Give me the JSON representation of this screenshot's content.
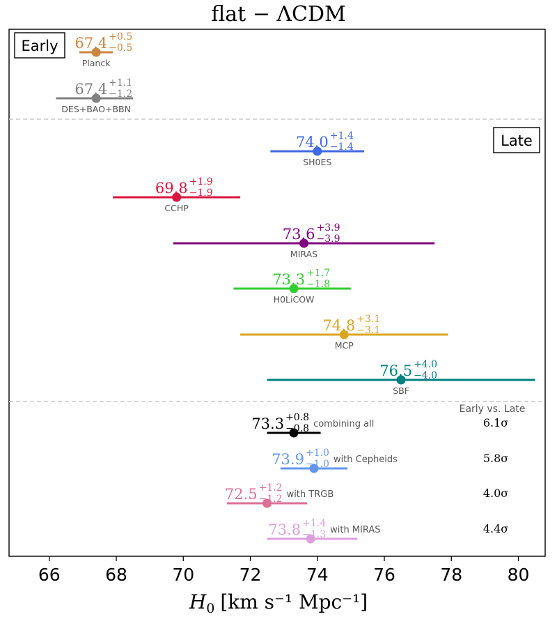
{
  "chart_data": {
    "type": "scatter",
    "title": "flat − ΛCDM",
    "xlabel_main": "H",
    "xlabel_sub": "0",
    "xlabel_units": "[km s⁻¹ Mpc⁻¹]",
    "xlim": [
      64.8,
      80.8
    ],
    "xticks": [
      "66",
      "68",
      "70",
      "72",
      "74",
      "76",
      "78",
      "80"
    ],
    "grid": false,
    "sections": [
      {
        "label": "Early",
        "box": "top-left"
      },
      {
        "label": "Late",
        "box": "top-right"
      }
    ],
    "comparison_header": "Early vs. Late",
    "series": [
      {
        "name": "Planck",
        "value": 67.4,
        "plus": 0.5,
        "minus": 0.5,
        "value_text": "67.4",
        "plus_text": "+0.5",
        "minus_text": "−0.5",
        "color": "#cd853f",
        "group": "early"
      },
      {
        "name": "DES+BAO+BBN",
        "value": 67.4,
        "plus": 1.1,
        "minus": 1.2,
        "value_text": "67.4",
        "plus_text": "+1.1",
        "minus_text": "−1.2",
        "color": "#808080",
        "group": "early"
      },
      {
        "name": "SH0ES",
        "value": 74.0,
        "plus": 1.4,
        "minus": 1.4,
        "value_text": "74.0",
        "plus_text": "+1.4",
        "minus_text": "−1.4",
        "color": "#4169e1",
        "group": "late"
      },
      {
        "name": "CCHP",
        "value": 69.8,
        "plus": 1.9,
        "minus": 1.9,
        "value_text": "69.8",
        "plus_text": "+1.9",
        "minus_text": "−1.9",
        "color": "#dc143c",
        "group": "late"
      },
      {
        "name": "MIRAS",
        "value": 73.6,
        "plus": 3.9,
        "minus": 3.9,
        "value_text": "73.6",
        "plus_text": "+3.9",
        "minus_text": "−3.9",
        "color": "#800080",
        "group": "late"
      },
      {
        "name": "H0LiCOW",
        "value": 73.3,
        "plus": 1.7,
        "minus": 1.8,
        "value_text": "73.3",
        "plus_text": "+1.7",
        "minus_text": "−1.8",
        "color": "#32cd32",
        "group": "late"
      },
      {
        "name": "MCP",
        "value": 74.8,
        "plus": 3.1,
        "minus": 3.1,
        "value_text": "74.8",
        "plus_text": "+3.1",
        "minus_text": "−3.1",
        "color": "#daa520",
        "group": "late"
      },
      {
        "name": "SBF",
        "value": 76.5,
        "plus": 4.0,
        "minus": 4.0,
        "value_text": "76.5",
        "plus_text": "+4.0",
        "minus_text": "−4.0",
        "color": "#008080",
        "group": "late"
      },
      {
        "name": "combining all",
        "value": 73.3,
        "plus": 0.8,
        "minus": 0.8,
        "value_text": "73.3",
        "plus_text": "+0.8",
        "minus_text": "−0.8",
        "color": "#000000",
        "group": "combined",
        "tension": "6.1σ"
      },
      {
        "name": "with Cepheids",
        "value": 73.9,
        "plus": 1.0,
        "minus": 1.0,
        "value_text": "73.9",
        "plus_text": "+1.0",
        "minus_text": "−1.0",
        "color": "#6495ed",
        "group": "combined",
        "tension": "5.8σ"
      },
      {
        "name": "with TRGB",
        "value": 72.5,
        "plus": 1.2,
        "minus": 1.2,
        "value_text": "72.5",
        "plus_text": "+1.2",
        "minus_text": "−1.2",
        "color": "#db7093",
        "group": "combined",
        "tension": "4.0σ"
      },
      {
        "name": "with MIRAS",
        "value": 73.8,
        "plus": 1.4,
        "minus": 1.3,
        "value_text": "73.8",
        "plus_text": "+1.4",
        "minus_text": "−1.3",
        "color": "#dda0dd",
        "group": "combined",
        "tension": "4.4σ"
      }
    ]
  }
}
